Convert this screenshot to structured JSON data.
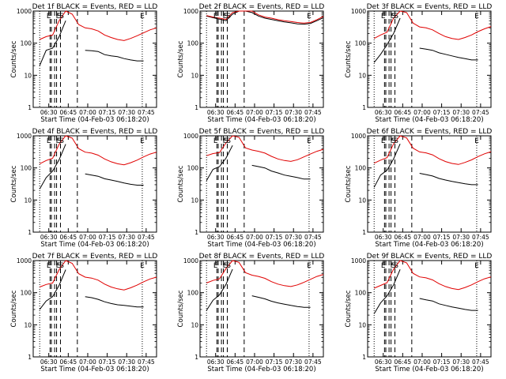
{
  "colors": {
    "events": "#000000",
    "lld": "#e00000",
    "axes": "#000000",
    "background": "#ffffff"
  },
  "y_tick_labels": [
    "1",
    "10",
    "100",
    "1000"
  ],
  "x_tick_labels": [
    "06:30",
    "06:45",
    "07:00",
    "07:15",
    "07:30",
    "07:45"
  ],
  "marker_labels": [
    "E",
    "F",
    "S",
    "S",
    "E"
  ],
  "chart_data": [
    {
      "type": "line",
      "title": "Det 1f BLACK = Events, RED = LLD",
      "xlabel": "Start Time (04-Feb-03 06:18:20)",
      "ylabel": "Counts/sec",
      "y_scale": "log",
      "ylim": [
        1,
        1000
      ],
      "xlim": [
        0,
        95
      ],
      "x_tick_values": [
        12,
        27,
        42,
        57,
        72,
        87
      ],
      "x": [
        0,
        5,
        10,
        15,
        20,
        25,
        30,
        35,
        40,
        45,
        50,
        55,
        60,
        65,
        70,
        75,
        80,
        85,
        90,
        95
      ],
      "series": [
        {
          "name": "Events",
          "color": "#000000",
          "values": [
            null,
            20,
            60,
            70,
            160,
            500,
            null,
            null,
            60,
            58,
            55,
            44,
            40,
            38,
            33,
            30,
            28,
            28,
            null,
            null
          ]
        },
        {
          "name": "LLD",
          "color": "#e00000",
          "values": [
            null,
            130,
            160,
            180,
            500,
            1000,
            800,
            380,
            300,
            280,
            240,
            180,
            150,
            130,
            120,
            140,
            170,
            210,
            260,
            300
          ]
        }
      ],
      "dashed_lines": [
        13,
        14,
        16.5,
        18,
        21,
        34
      ],
      "dotted_lines": [
        5,
        84
      ],
      "markers": [
        {
          "label": "E",
          "x": 12
        },
        {
          "label": "F",
          "x": 19
        },
        {
          "label": "S",
          "x": 20
        },
        {
          "label": "S",
          "x": 22
        },
        {
          "label": "E",
          "x": 84
        }
      ]
    },
    {
      "type": "line",
      "title": "Det 2f BLACK = Events, RED = LLD",
      "xlabel": "Start Time (04-Feb-03 06:18:20)",
      "ylabel": "Counts/sec",
      "y_scale": "log",
      "ylim": [
        1,
        1000
      ],
      "xlim": [
        0,
        95
      ],
      "x_tick_values": [
        12,
        27,
        42,
        57,
        72,
        87
      ],
      "x": [
        0,
        5,
        10,
        15,
        20,
        25,
        30,
        35,
        40,
        45,
        50,
        55,
        60,
        65,
        70,
        75,
        80,
        85,
        90,
        95
      ],
      "series": [
        {
          "name": "Events",
          "color": "#000000",
          "values": [
            null,
            700,
            620,
            560,
            500,
            800,
            1000,
            1000,
            900,
            700,
            600,
            550,
            500,
            460,
            430,
            400,
            390,
            410,
            500,
            620
          ]
        },
        {
          "name": "LLD",
          "color": "#e00000",
          "values": [
            null,
            720,
            650,
            600,
            550,
            900,
            1000,
            1000,
            1000,
            760,
            650,
            600,
            540,
            500,
            470,
            440,
            420,
            440,
            540,
            680
          ]
        }
      ],
      "dashed_lines": [
        13,
        14,
        16.5,
        18,
        21,
        34
      ],
      "dotted_lines": [
        5,
        84
      ],
      "markers": [
        {
          "label": "E",
          "x": 12
        },
        {
          "label": "F",
          "x": 19
        },
        {
          "label": "S",
          "x": 20
        },
        {
          "label": "S",
          "x": 22
        },
        {
          "label": "E",
          "x": 84
        }
      ]
    },
    {
      "type": "line",
      "title": "Det 3f BLACK = Events, RED = LLD",
      "xlabel": "Start Time (04-Feb-03 06:18:20)",
      "ylabel": "Counts/sec",
      "y_scale": "log",
      "ylim": [
        1,
        1000
      ],
      "xlim": [
        0,
        95
      ],
      "x_tick_values": [
        12,
        27,
        42,
        57,
        72,
        87
      ],
      "x": [
        0,
        5,
        10,
        15,
        20,
        25,
        30,
        35,
        40,
        45,
        50,
        55,
        60,
        65,
        70,
        75,
        80,
        85,
        90,
        95
      ],
      "series": [
        {
          "name": "Events",
          "color": "#000000",
          "values": [
            null,
            25,
            45,
            90,
            200,
            600,
            null,
            null,
            70,
            65,
            60,
            50,
            45,
            40,
            36,
            33,
            30,
            30,
            null,
            null
          ]
        },
        {
          "name": "LLD",
          "color": "#e00000",
          "values": [
            null,
            140,
            180,
            220,
            600,
            1000,
            900,
            420,
            320,
            300,
            260,
            200,
            160,
            140,
            130,
            150,
            180,
            230,
            280,
            330
          ]
        }
      ],
      "dashed_lines": [
        13,
        14,
        16.5,
        18,
        21,
        34
      ],
      "dotted_lines": [
        5,
        84
      ],
      "markers": [
        {
          "label": "E",
          "x": 12
        },
        {
          "label": "F",
          "x": 19
        },
        {
          "label": "S",
          "x": 20
        },
        {
          "label": "S",
          "x": 22
        },
        {
          "label": "E",
          "x": 84
        }
      ]
    },
    {
      "type": "line",
      "title": "Det 4f BLACK = Events, RED = LLD",
      "xlabel": "Start Time (04-Feb-03 06:18:20)",
      "ylabel": "Counts/sec",
      "y_scale": "log",
      "ylim": [
        1,
        1000
      ],
      "xlim": [
        0,
        95
      ],
      "x_tick_values": [
        12,
        27,
        42,
        57,
        72,
        87
      ],
      "x": [
        0,
        5,
        10,
        15,
        20,
        25,
        30,
        35,
        40,
        45,
        50,
        55,
        60,
        65,
        70,
        75,
        80,
        85,
        90,
        95
      ],
      "series": [
        {
          "name": "Events",
          "color": "#000000",
          "values": [
            null,
            22,
            50,
            80,
            180,
            550,
            null,
            null,
            65,
            60,
            55,
            46,
            42,
            38,
            34,
            31,
            29,
            29,
            null,
            null
          ]
        },
        {
          "name": "LLD",
          "color": "#e00000",
          "values": [
            null,
            135,
            170,
            200,
            550,
            1000,
            850,
            400,
            310,
            290,
            250,
            190,
            155,
            135,
            125,
            145,
            175,
            220,
            270,
            310
          ]
        }
      ],
      "dashed_lines": [
        13,
        14,
        16.5,
        18,
        21,
        34
      ],
      "dotted_lines": [
        5,
        84
      ],
      "markers": [
        {
          "label": "E",
          "x": 12
        },
        {
          "label": "F",
          "x": 19
        },
        {
          "label": "S",
          "x": 20
        },
        {
          "label": "S",
          "x": 22
        },
        {
          "label": "E",
          "x": 84
        }
      ]
    },
    {
      "type": "line",
      "title": "Det 5f BLACK = Events, RED = LLD",
      "xlabel": "Start Time (04-Feb-03 06:18:20)",
      "ylabel": "Counts/sec",
      "y_scale": "log",
      "ylim": [
        1,
        1000
      ],
      "xlim": [
        0,
        95
      ],
      "x_tick_values": [
        12,
        27,
        42,
        57,
        72,
        87
      ],
      "x": [
        0,
        5,
        10,
        15,
        20,
        25,
        30,
        35,
        40,
        45,
        50,
        55,
        60,
        65,
        70,
        75,
        80,
        85,
        90,
        95
      ],
      "series": [
        {
          "name": "Events",
          "color": "#000000",
          "values": [
            null,
            40,
            90,
            110,
            200,
            500,
            null,
            null,
            120,
            110,
            100,
            80,
            70,
            60,
            55,
            50,
            45,
            45,
            null,
            null
          ]
        },
        {
          "name": "LLD",
          "color": "#e00000",
          "values": [
            null,
            240,
            280,
            300,
            600,
            1000,
            900,
            420,
            360,
            330,
            290,
            230,
            190,
            170,
            160,
            180,
            220,
            270,
            330,
            380
          ]
        }
      ],
      "dashed_lines": [
        13,
        14,
        16.5,
        18,
        21,
        34
      ],
      "dotted_lines": [
        5,
        84
      ],
      "markers": [
        {
          "label": "E",
          "x": 12
        },
        {
          "label": "F",
          "x": 19
        },
        {
          "label": "S",
          "x": 20
        },
        {
          "label": "S",
          "x": 22
        },
        {
          "label": "E",
          "x": 84
        }
      ]
    },
    {
      "type": "line",
      "title": "Det 6f BLACK = Events, RED = LLD",
      "xlabel": "Start Time (04-Feb-03 06:18:20)",
      "ylabel": "Counts/sec",
      "y_scale": "log",
      "ylim": [
        1,
        1000
      ],
      "xlim": [
        0,
        95
      ],
      "x_tick_values": [
        12,
        27,
        42,
        57,
        72,
        87
      ],
      "x": [
        0,
        5,
        10,
        15,
        20,
        25,
        30,
        35,
        40,
        45,
        50,
        55,
        60,
        65,
        70,
        75,
        80,
        85,
        90,
        95
      ],
      "series": [
        {
          "name": "Events",
          "color": "#000000",
          "values": [
            null,
            25,
            60,
            85,
            190,
            560,
            null,
            null,
            68,
            62,
            56,
            47,
            42,
            38,
            35,
            32,
            30,
            30,
            null,
            null
          ]
        },
        {
          "name": "LLD",
          "color": "#e00000",
          "values": [
            null,
            140,
            175,
            210,
            560,
            1000,
            860,
            410,
            315,
            295,
            255,
            195,
            158,
            138,
            128,
            148,
            178,
            225,
            275,
            320
          ]
        }
      ],
      "dashed_lines": [
        13,
        14,
        16.5,
        18,
        21,
        34
      ],
      "dotted_lines": [
        5,
        84
      ],
      "markers": [
        {
          "label": "E",
          "x": 12
        },
        {
          "label": "F",
          "x": 19
        },
        {
          "label": "S",
          "x": 20
        },
        {
          "label": "S",
          "x": 22
        },
        {
          "label": "E",
          "x": 84
        }
      ]
    },
    {
      "type": "line",
      "title": "Det 7f BLACK = Events, RED = LLD",
      "xlabel": "Start Time (04-Feb-03 06:18:20)",
      "ylabel": "Counts/sec",
      "y_scale": "log",
      "ylim": [
        1,
        1000
      ],
      "xlim": [
        0,
        95
      ],
      "x_tick_values": [
        12,
        27,
        42,
        57,
        72,
        87
      ],
      "x": [
        0,
        5,
        10,
        15,
        20,
        25,
        30,
        35,
        40,
        45,
        50,
        55,
        60,
        65,
        70,
        75,
        80,
        85,
        90,
        95
      ],
      "series": [
        {
          "name": "Events",
          "color": "#000000",
          "values": [
            null,
            30,
            55,
            75,
            170,
            520,
            null,
            null,
            75,
            70,
            62,
            52,
            46,
            42,
            40,
            38,
            36,
            36,
            null,
            null
          ]
        },
        {
          "name": "LLD",
          "color": "#e00000",
          "values": [
            null,
            150,
            180,
            200,
            520,
            1000,
            820,
            390,
            305,
            285,
            245,
            185,
            150,
            132,
            122,
            142,
            172,
            218,
            268,
            305
          ]
        }
      ],
      "dashed_lines": [
        13,
        14,
        16.5,
        18,
        21,
        34
      ],
      "dotted_lines": [
        5,
        84
      ],
      "markers": [
        {
          "label": "E",
          "x": 12
        },
        {
          "label": "F",
          "x": 19
        },
        {
          "label": "S",
          "x": 20
        },
        {
          "label": "S",
          "x": 22
        },
        {
          "label": "E",
          "x": 84
        }
      ]
    },
    {
      "type": "line",
      "title": "Det 8f BLACK = Events, RED = LLD",
      "xlabel": "Start Time (04-Feb-03 06:18:20)",
      "ylabel": "Counts/sec",
      "y_scale": "log",
      "ylim": [
        1,
        1000
      ],
      "xlim": [
        0,
        95
      ],
      "x_tick_values": [
        12,
        27,
        42,
        57,
        72,
        87
      ],
      "x": [
        0,
        5,
        10,
        15,
        20,
        25,
        30,
        35,
        40,
        45,
        50,
        55,
        60,
        65,
        70,
        75,
        80,
        85,
        90,
        95
      ],
      "series": [
        {
          "name": "Events",
          "color": "#000000",
          "values": [
            null,
            28,
            58,
            85,
            180,
            540,
            null,
            null,
            80,
            72,
            64,
            54,
            48,
            44,
            40,
            37,
            35,
            35,
            null,
            null
          ]
        },
        {
          "name": "LLD",
          "color": "#e00000",
          "values": [
            null,
            200,
            240,
            270,
            560,
            1000,
            880,
            420,
            350,
            320,
            280,
            220,
            185,
            165,
            155,
            175,
            210,
            260,
            320,
            370
          ]
        }
      ],
      "dashed_lines": [
        13,
        14,
        16.5,
        18,
        21,
        34
      ],
      "dotted_lines": [
        5,
        84
      ],
      "markers": [
        {
          "label": "E",
          "x": 12
        },
        {
          "label": "F",
          "x": 19
        },
        {
          "label": "S",
          "x": 20
        },
        {
          "label": "S",
          "x": 22
        },
        {
          "label": "E",
          "x": 84
        }
      ]
    },
    {
      "type": "line",
      "title": "Det 9f BLACK = Events, RED = LLD",
      "xlabel": "Start Time (04-Feb-03 06:18:20)",
      "ylabel": "Counts/sec",
      "y_scale": "log",
      "ylim": [
        1,
        1000
      ],
      "xlim": [
        0,
        95
      ],
      "x_tick_values": [
        12,
        27,
        42,
        57,
        72,
        87
      ],
      "x": [
        0,
        5,
        10,
        15,
        20,
        25,
        30,
        35,
        40,
        45,
        50,
        55,
        60,
        65,
        70,
        75,
        80,
        85,
        90,
        95
      ],
      "series": [
        {
          "name": "Events",
          "color": "#000000",
          "values": [
            null,
            22,
            48,
            80,
            175,
            530,
            null,
            null,
            66,
            60,
            55,
            45,
            40,
            36,
            33,
            30,
            28,
            28,
            null,
            null
          ]
        },
        {
          "name": "LLD",
          "color": "#e00000",
          "values": [
            null,
            138,
            168,
            205,
            540,
            1000,
            850,
            400,
            310,
            290,
            250,
            190,
            155,
            135,
            125,
            145,
            175,
            220,
            270,
            310
          ]
        }
      ],
      "dashed_lines": [
        13,
        14,
        16.5,
        18,
        21,
        34
      ],
      "dotted_lines": [
        5,
        84
      ],
      "markers": [
        {
          "label": "E",
          "x": 12
        },
        {
          "label": "F",
          "x": 19
        },
        {
          "label": "S",
          "x": 20
        },
        {
          "label": "S",
          "x": 22
        },
        {
          "label": "E",
          "x": 84
        }
      ]
    }
  ]
}
